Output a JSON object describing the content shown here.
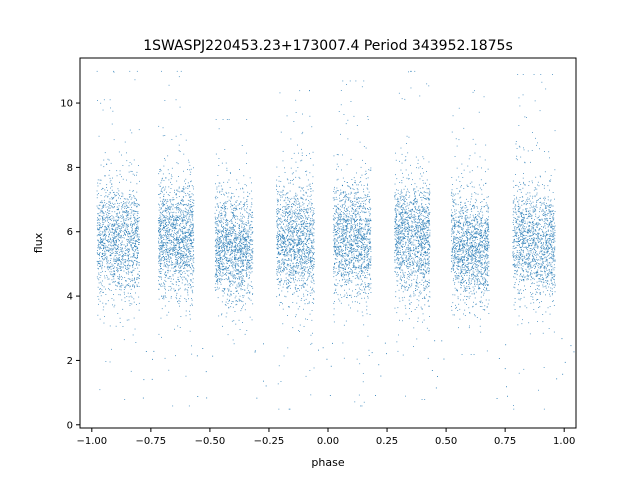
{
  "chart_data": {
    "type": "scatter",
    "title": "1SWASPJ220453.23+173007.4 Period 343952.1875s",
    "xlabel": "phase",
    "ylabel": "flux",
    "xlim": [
      -1.05,
      1.05
    ],
    "ylim": [
      -0.1,
      11.4
    ],
    "x_ticks": [
      -1.0,
      -0.75,
      -0.5,
      -0.25,
      0.0,
      0.25,
      0.5,
      0.75,
      1.0
    ],
    "x_tick_labels": [
      "−1.00",
      "−0.75",
      "−0.50",
      "−0.25",
      "0.00",
      "0.25",
      "0.50",
      "0.75",
      "1.00"
    ],
    "y_ticks": [
      0,
      2,
      4,
      6,
      8,
      10
    ],
    "y_tick_labels": [
      "0",
      "2",
      "4",
      "6",
      "8",
      "10"
    ],
    "grid": false,
    "legend": "none",
    "point_color": "#1f77b4",
    "clusters": [
      {
        "phase_range": [
          -0.98,
          -0.8
        ],
        "flux_center": 5.8,
        "flux_spread": 0.9,
        "flux_max": 11.0,
        "flux_min": 0.8
      },
      {
        "phase_range": [
          -0.72,
          -0.57
        ],
        "flux_center": 5.8,
        "flux_spread": 0.9,
        "flux_max": 11.0,
        "flux_min": 0.6
      },
      {
        "phase_range": [
          -0.48,
          -0.32
        ],
        "flux_center": 5.5,
        "flux_spread": 0.85,
        "flux_max": 9.5,
        "flux_min": 2.2
      },
      {
        "phase_range": [
          -0.22,
          -0.06
        ],
        "flux_center": 5.7,
        "flux_spread": 0.9,
        "flux_max": 10.4,
        "flux_min": 0.5
      },
      {
        "phase_range": [
          0.02,
          0.18
        ],
        "flux_center": 5.8,
        "flux_spread": 0.9,
        "flux_max": 10.7,
        "flux_min": 0.6
      },
      {
        "phase_range": [
          0.28,
          0.43
        ],
        "flux_center": 5.8,
        "flux_spread": 0.9,
        "flux_max": 11.0,
        "flux_min": 0.8
      },
      {
        "phase_range": [
          0.52,
          0.68
        ],
        "flux_center": 5.5,
        "flux_spread": 0.85,
        "flux_max": 10.4,
        "flux_min": 2.2
      },
      {
        "phase_range": [
          0.78,
          0.96
        ],
        "flux_center": 5.7,
        "flux_spread": 0.9,
        "flux_max": 10.9,
        "flux_min": 0.5
      }
    ]
  }
}
